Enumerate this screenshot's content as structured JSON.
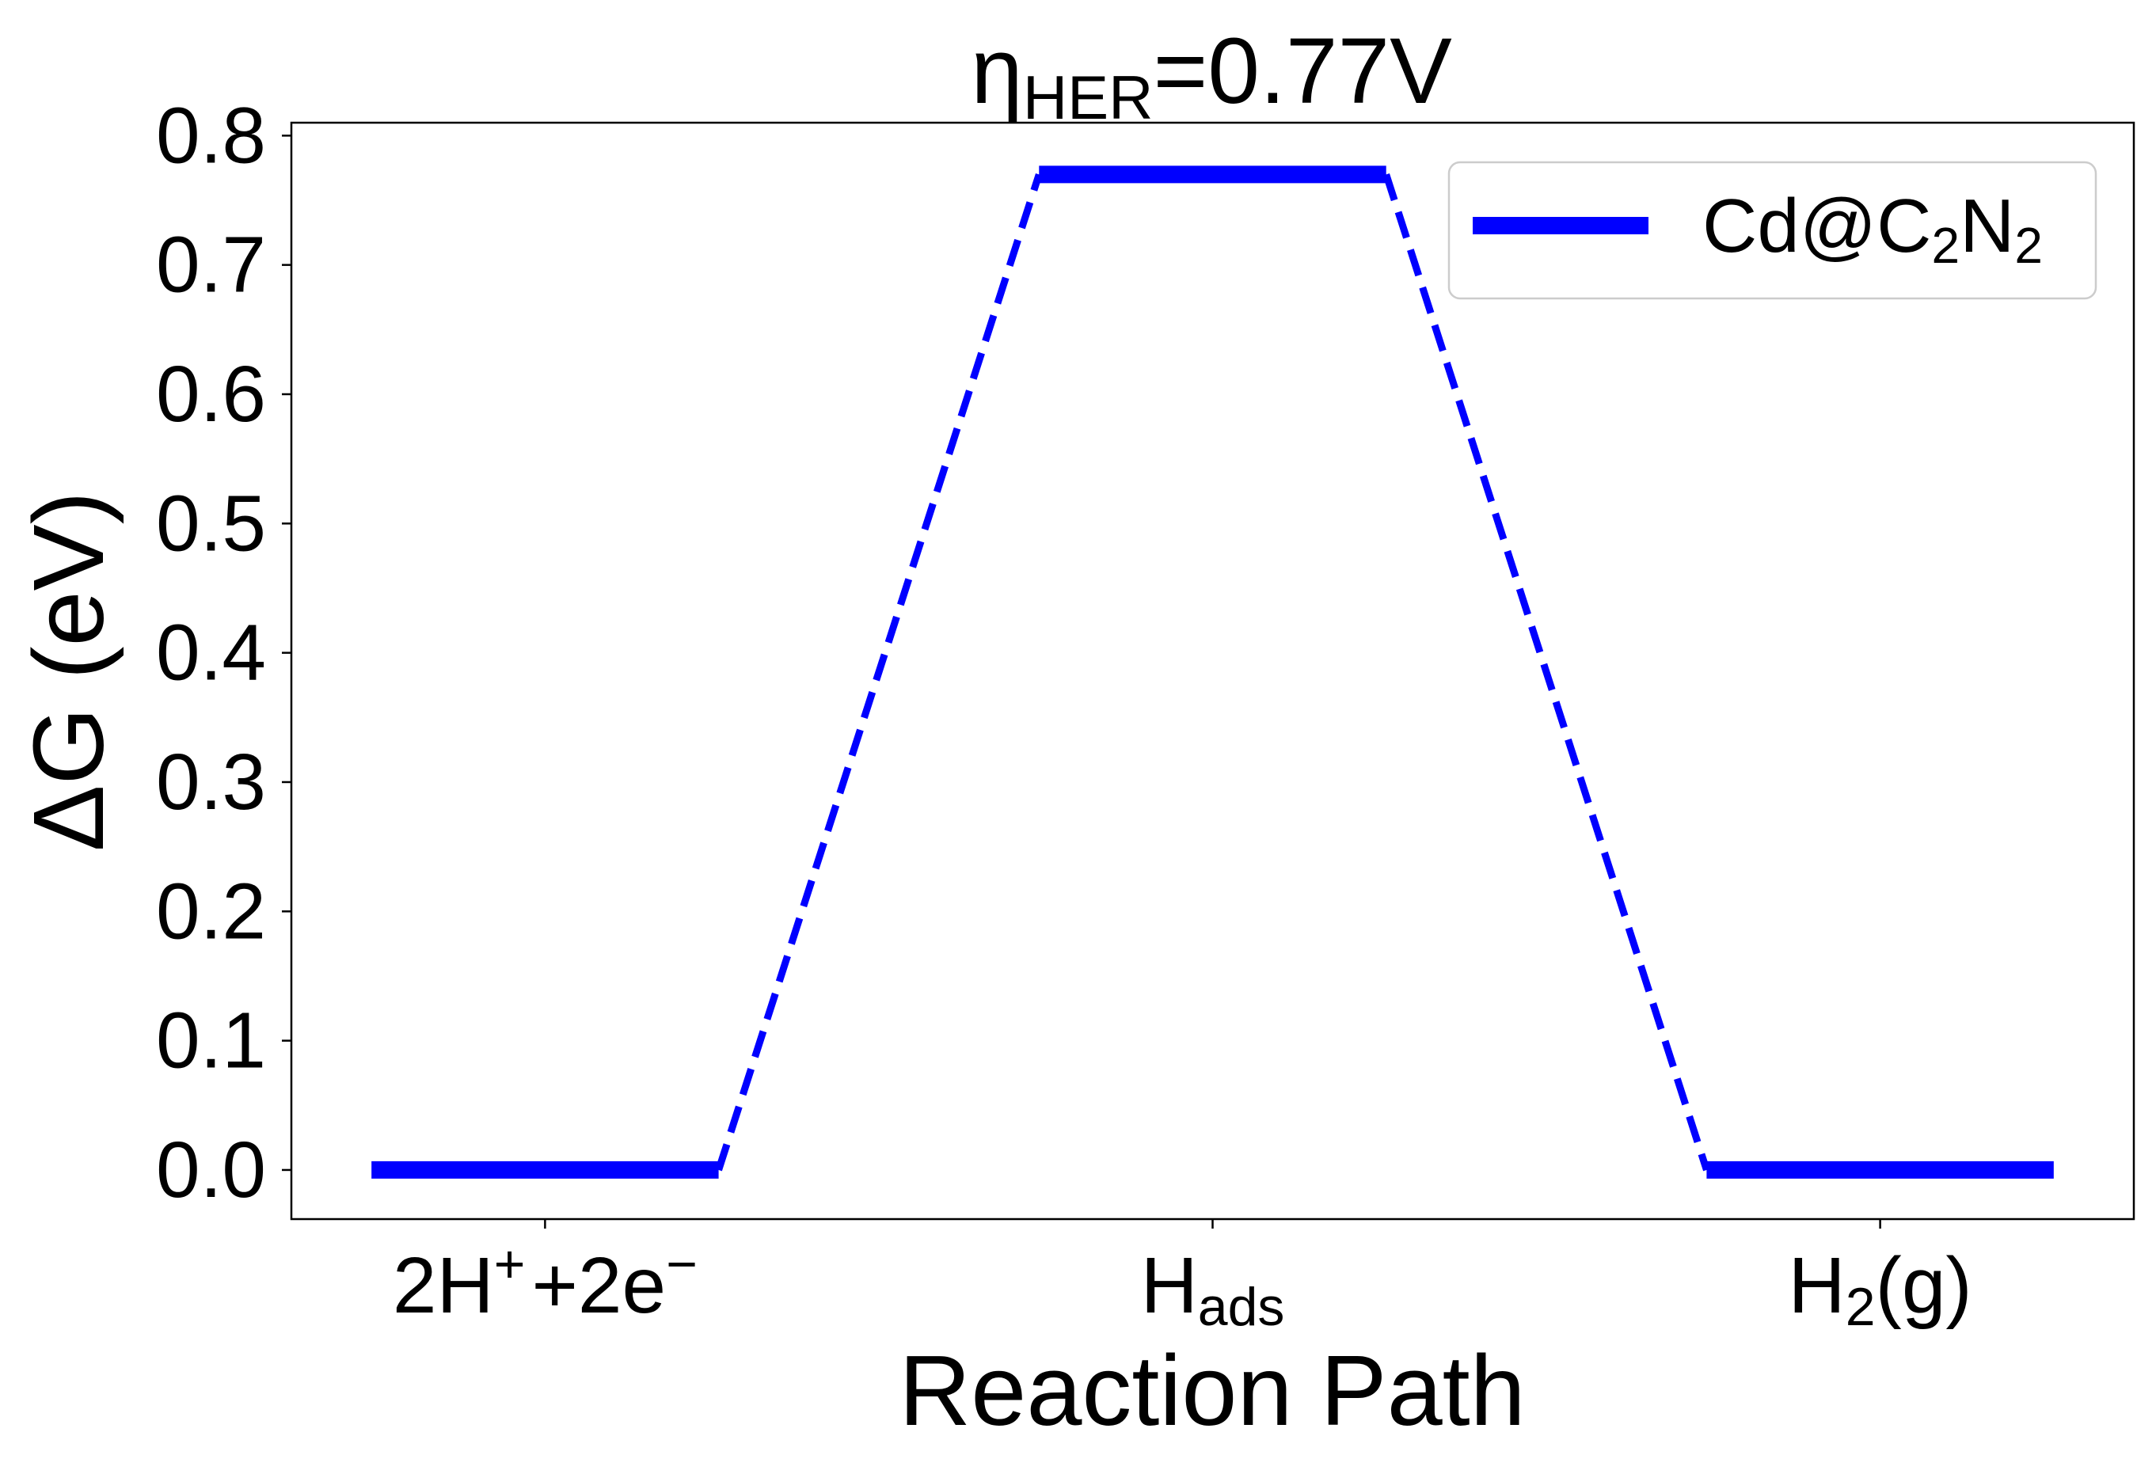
{
  "chart_data": {
    "type": "line",
    "title": {
      "prefix": "η",
      "subscript": "HER",
      "suffix": "=0.77V"
    },
    "xlabel": "Reaction Path",
    "ylabel": "ΔG (eV)",
    "ylim": [
      -0.038,
      0.81
    ],
    "yticks": [
      "0.0",
      "0.1",
      "0.2",
      "0.3",
      "0.4",
      "0.5",
      "0.6",
      "0.7",
      "0.8"
    ],
    "ytick_values": [
      0.0,
      0.1,
      0.2,
      0.3,
      0.4,
      0.5,
      0.6,
      0.7,
      0.8
    ],
    "xlim": [
      -0.38,
      2.38
    ],
    "categories": [
      {
        "base": "2H",
        "sup1": "+",
        "mid": "+2e",
        "sup2": "−",
        "sub": "",
        "tail": ""
      },
      {
        "base": "H",
        "sup1": "",
        "mid": "",
        "sup2": "",
        "sub": "ads",
        "tail": ""
      },
      {
        "base": "H",
        "sup1": "",
        "mid": "",
        "sup2": "",
        "sub": "2",
        "tail": "(g)"
      }
    ],
    "series": [
      {
        "name": "Cd@C₂N₂",
        "legend_base": "Cd@C",
        "legend_sub1": "2",
        "legend_mid": "N",
        "legend_sub2": "2",
        "color": "#0000ff",
        "values": [
          0.0,
          0.77,
          0.0
        ],
        "level_half_width": 0.26
      }
    ],
    "legend_position": "upper-right",
    "grid": false
  }
}
